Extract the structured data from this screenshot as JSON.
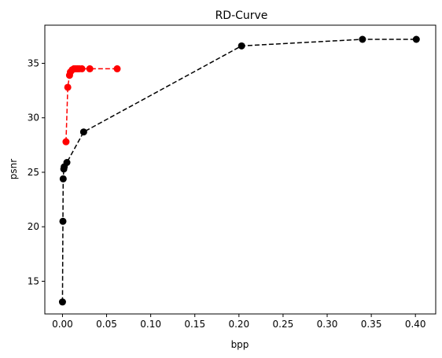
{
  "chart_data": {
    "type": "line",
    "title": "RD-Curve",
    "xlabel": "bpp",
    "ylabel": "psnr",
    "xlim": [
      -0.02,
      0.423
    ],
    "ylim": [
      12.0,
      38.5
    ],
    "xticks": [
      "0.00",
      "0.05",
      "0.10",
      "0.15",
      "0.20",
      "0.25",
      "0.30",
      "0.35",
      "0.40"
    ],
    "xtick_values": [
      0.0,
      0.05,
      0.1,
      0.15,
      0.2,
      0.25,
      0.3,
      0.35,
      0.4
    ],
    "yticks": [
      "15",
      "20",
      "25",
      "30",
      "35"
    ],
    "ytick_values": [
      15,
      20,
      25,
      30,
      35
    ],
    "grid": false,
    "series": [
      {
        "color": "#000000",
        "line_style": "dashed",
        "marker": "circle",
        "x": [
          0.0,
          0.0005,
          0.0008,
          0.0015,
          0.002,
          0.005,
          0.024,
          0.203,
          0.34,
          0.401
        ],
        "y": [
          13.1,
          20.5,
          24.4,
          25.3,
          25.5,
          25.9,
          28.7,
          36.6,
          37.2,
          37.2
        ]
      },
      {
        "color": "#ff0000",
        "line_style": "dashed",
        "marker": "circle",
        "x": [
          0.004,
          0.006,
          0.008,
          0.009,
          0.011,
          0.013,
          0.015,
          0.017,
          0.019,
          0.022,
          0.031,
          0.062
        ],
        "y": [
          27.8,
          32.8,
          33.9,
          34.2,
          34.4,
          34.5,
          34.5,
          34.5,
          34.5,
          34.5,
          34.5,
          34.5
        ]
      }
    ]
  }
}
